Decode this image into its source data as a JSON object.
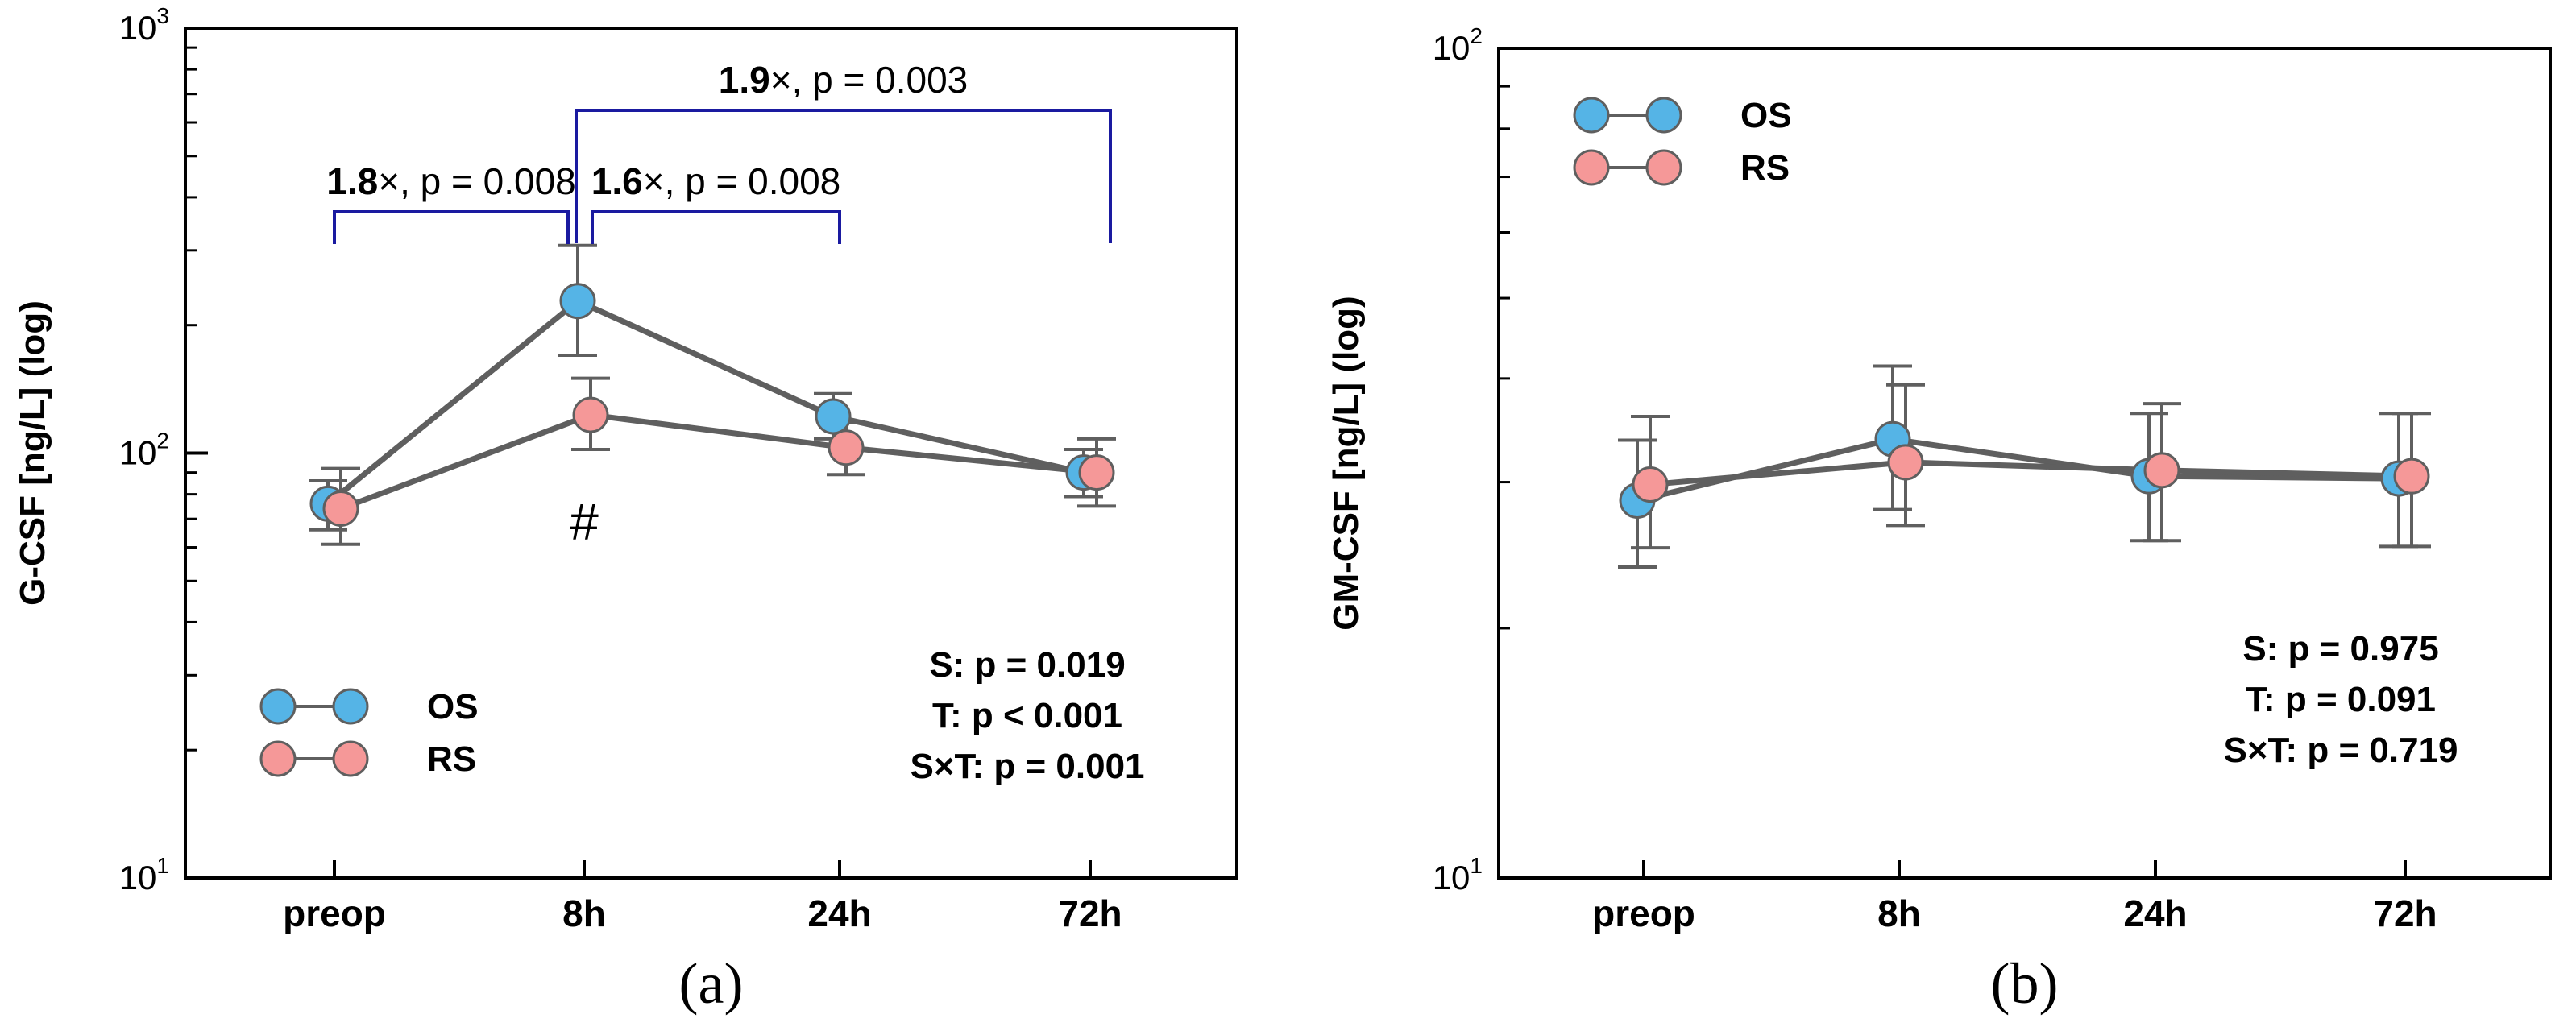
{
  "colors": {
    "OS": "#55b4e6",
    "RS": "#f59898",
    "line": "#5f5f5f",
    "bracket": "#1a1aa0"
  },
  "chart_data": [
    {
      "type": "line",
      "caption": "(a)",
      "ylabel": "G-CSF [ng/L] (log)",
      "yscale": "log",
      "ylim": [
        10,
        1000
      ],
      "ytick_labels": [
        {
          "base": "10",
          "exp": "1"
        },
        {
          "base": "10",
          "exp": "2"
        },
        {
          "base": "10",
          "exp": "3"
        }
      ],
      "categories": [
        "preop",
        "8h",
        "24h",
        "72h"
      ],
      "legend_position": "bottom-left",
      "series": [
        {
          "name": "OS",
          "values": [
            76,
            228,
            122,
            90
          ],
          "err_low": [
            66,
            170,
            108,
            79
          ],
          "err_high": [
            86,
            308,
            138,
            102
          ]
        },
        {
          "name": "RS",
          "values": [
            74,
            123,
            103,
            90
          ],
          "err_low": [
            61,
            102,
            89,
            75
          ],
          "err_high": [
            92,
            150,
            118,
            108
          ]
        }
      ],
      "stats": [
        "S: p = 0.019",
        "T: p < 0.001",
        "S×T: p = 0.001"
      ],
      "brackets": [
        {
          "from": 0,
          "to": 1,
          "label_bold": "1.8",
          "label_rest": "×, p = 0.008"
        },
        {
          "from": 1,
          "to": 2,
          "label_bold": "1.6",
          "label_rest": "×, p = 0.008"
        },
        {
          "from": 1,
          "to": 3,
          "label_bold": "1.9",
          "label_rest": "×, p = 0.003"
        }
      ],
      "annotation": {
        "text": "#",
        "category": 1
      }
    },
    {
      "type": "line",
      "caption": "(b)",
      "ylabel": "GM-CSF [ng/L] (log)",
      "yscale": "log",
      "ylim": [
        10,
        100
      ],
      "ytick_labels": [
        {
          "base": "10",
          "exp": "1"
        },
        {
          "base": "10",
          "exp": "2"
        }
      ],
      "categories": [
        "preop",
        "8h",
        "24h",
        "72h"
      ],
      "legend_position": "top-left",
      "series": [
        {
          "name": "OS",
          "values": [
            28.5,
            33.8,
            30.5,
            30.3
          ],
          "err_low": [
            23.7,
            27.8,
            25.5,
            25.1
          ],
          "err_high": [
            33.7,
            41.4,
            36.3,
            36.3
          ]
        },
        {
          "name": "RS",
          "values": [
            29.8,
            31.7,
            31.0,
            30.5
          ],
          "err_low": [
            25.0,
            26.6,
            25.5,
            25.1
          ],
          "err_high": [
            36.0,
            39.3,
            37.3,
            36.3
          ]
        }
      ],
      "stats": [
        "S: p = 0.975",
        "T: p = 0.091",
        "S×T: p = 0.719"
      ]
    }
  ]
}
